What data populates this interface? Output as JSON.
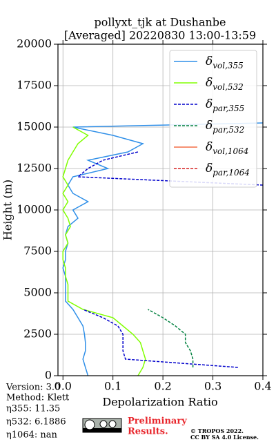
{
  "chart_data": {
    "type": "line",
    "title": "pollyxt_tjk at Dushanbe",
    "subtitle": "[Averaged] 20220830 13:00-13:59",
    "x_label": "Depolarization Ratio",
    "y_label": "Height (m)",
    "y": [
      0,
      500,
      1000,
      1500,
      2000,
      2500,
      3000,
      3500,
      4000,
      4500,
      5000,
      5500,
      6000,
      6500,
      7000,
      7500,
      8000,
      8500,
      9000,
      9500,
      10000,
      10500,
      11000,
      11500,
      12000,
      12500,
      13000,
      13500,
      14000,
      14500,
      15000,
      15250
    ],
    "series": [
      {
        "name": "δvol,355",
        "color": "#2f8fe8",
        "dash": false,
        "values": [
          0.05,
          0.045,
          0.04,
          0.045,
          0.045,
          0.043,
          0.04,
          0.03,
          0.02,
          0.005,
          0.005,
          0.005,
          0.005,
          0.0,
          0.005,
          0.005,
          0.01,
          0.005,
          0.01,
          0.03,
          0.02,
          0.05,
          0.02,
          0.01,
          0.02,
          0.09,
          0.05,
          0.13,
          0.16,
          0.1,
          0.02,
          0.4
        ]
      },
      {
        "name": "δvol,532",
        "color": "#80ff00",
        "dash": false,
        "values": [
          0.15,
          0.16,
          0.165,
          0.16,
          0.155,
          0.14,
          0.12,
          0.1,
          0.04,
          0.01,
          0.01,
          0.01,
          0.005,
          0.005,
          0.0,
          0.0,
          0.01,
          0.005,
          0.015,
          0.01,
          0.0,
          0.01,
          0.0,
          0.01,
          0.0,
          0.005,
          0.01,
          0.02,
          0.03,
          0.05,
          0.02,
          null
        ]
      },
      {
        "name": "δpar,355",
        "color": "#0000cc",
        "dash": true,
        "values": [
          null,
          0.35,
          0.125,
          0.12,
          0.12,
          0.12,
          0.11,
          0.08,
          0.04,
          null,
          null,
          null,
          null,
          null,
          null,
          null,
          null,
          null,
          null,
          null,
          null,
          null,
          null,
          0.4,
          0.03,
          0.05,
          0.08,
          0.15,
          null,
          null,
          null,
          null
        ]
      },
      {
        "name": "δpar,532",
        "color": "#00803f",
        "dash": true,
        "values": [
          null,
          0.26,
          0.26,
          0.255,
          0.245,
          0.245,
          0.225,
          0.2,
          0.17,
          null,
          null,
          null,
          null,
          null,
          null,
          null,
          null,
          null,
          null,
          null,
          null,
          null,
          null,
          null,
          null,
          null,
          null,
          null,
          null,
          null,
          null,
          null
        ]
      },
      {
        "name": "δvol,1064",
        "color": "#f46d43",
        "dash": false,
        "values": [
          null,
          null,
          null,
          null,
          null,
          null,
          null,
          null,
          null,
          null,
          null,
          null,
          null,
          null,
          null,
          null,
          null,
          null,
          null,
          null,
          null,
          null,
          null,
          null,
          null,
          null,
          null,
          null,
          null,
          null,
          null,
          null
        ]
      },
      {
        "name": "δpar,1064",
        "color": "#d62020",
        "dash": true,
        "values": [
          null,
          null,
          null,
          null,
          null,
          null,
          null,
          null,
          null,
          null,
          null,
          null,
          null,
          null,
          null,
          null,
          null,
          null,
          null,
          null,
          null,
          null,
          null,
          null,
          null,
          null,
          null,
          null,
          null,
          null,
          null,
          null
        ]
      }
    ],
    "xlim": [
      -0.01,
      0.4
    ],
    "xticks": [
      {
        "value": 0,
        "label": "0.0"
      },
      0.1,
      0.2,
      0.3,
      0.4
    ],
    "ylim": [
      0,
      20000
    ],
    "yticks": [
      0,
      2500,
      5000,
      7500,
      10000,
      12500,
      15000,
      17500,
      20000
    ],
    "grid": true,
    "legend": "upper right",
    "notes": [
      "Version: 3.0",
      "Method: Klett",
      "η355:  11.35",
      "η532: 6.1886",
      "η1064:    nan"
    ],
    "preliminary": [
      "Preliminary",
      "Results."
    ],
    "copyright": [
      "© TROPOS 2022.",
      "CC BY SA 4.0 License."
    ]
  }
}
